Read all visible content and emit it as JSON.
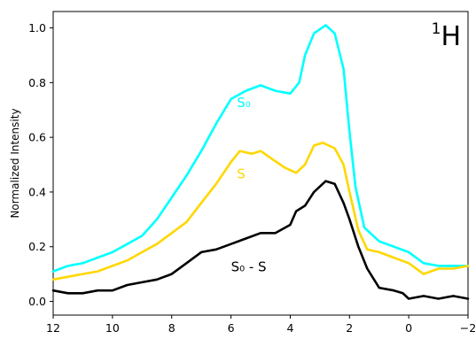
{
  "chart_data": {
    "type": "line",
    "title": "",
    "corner_label": {
      "sup": "1",
      "main": "H"
    },
    "xlabel": "",
    "ylabel": "Normalized Intensity",
    "xlim": [
      12,
      -2
    ],
    "ylim": [
      -0.05,
      1.06
    ],
    "x_reversed": true,
    "xticks": [
      12,
      10,
      8,
      6,
      4,
      2,
      0,
      -2
    ],
    "xtick_labels": [
      "12",
      "10",
      "8",
      "6",
      "4",
      "2",
      "0",
      "−2"
    ],
    "yticks": [
      0.0,
      0.2,
      0.4,
      0.6,
      0.8,
      1.0
    ],
    "ytick_labels": [
      "0.0",
      "0.2",
      "0.4",
      "0.6",
      "0.8",
      "1.0"
    ],
    "grid": false,
    "legend": "none",
    "series": [
      {
        "name": "S₀",
        "label_at": [
          5.8,
          0.71
        ],
        "color": "#00FFFF",
        "points": [
          [
            12,
            0.11
          ],
          [
            11.5,
            0.13
          ],
          [
            11,
            0.14
          ],
          [
            10.5,
            0.16
          ],
          [
            10,
            0.18
          ],
          [
            9.5,
            0.21
          ],
          [
            9,
            0.24
          ],
          [
            8.5,
            0.3
          ],
          [
            8,
            0.38
          ],
          [
            7.5,
            0.46
          ],
          [
            7,
            0.55
          ],
          [
            6.5,
            0.65
          ],
          [
            6,
            0.74
          ],
          [
            5.5,
            0.77
          ],
          [
            5,
            0.79
          ],
          [
            4.5,
            0.77
          ],
          [
            4,
            0.76
          ],
          [
            3.7,
            0.8
          ],
          [
            3.5,
            0.9
          ],
          [
            3.2,
            0.98
          ],
          [
            2.8,
            1.01
          ],
          [
            2.5,
            0.98
          ],
          [
            2.2,
            0.85
          ],
          [
            2,
            0.62
          ],
          [
            1.8,
            0.42
          ],
          [
            1.5,
            0.27
          ],
          [
            1,
            0.22
          ],
          [
            0.5,
            0.2
          ],
          [
            0,
            0.18
          ],
          [
            -0.5,
            0.14
          ],
          [
            -1,
            0.13
          ],
          [
            -1.5,
            0.13
          ],
          [
            -2,
            0.13
          ]
        ]
      },
      {
        "name": "S",
        "label_at": [
          5.8,
          0.45
        ],
        "color": "#FFD700",
        "points": [
          [
            12,
            0.08
          ],
          [
            11.5,
            0.09
          ],
          [
            11,
            0.1
          ],
          [
            10.5,
            0.11
          ],
          [
            10,
            0.13
          ],
          [
            9.5,
            0.15
          ],
          [
            9,
            0.18
          ],
          [
            8.5,
            0.21
          ],
          [
            8,
            0.25
          ],
          [
            7.5,
            0.29
          ],
          [
            7,
            0.36
          ],
          [
            6.5,
            0.43
          ],
          [
            6,
            0.51
          ],
          [
            5.7,
            0.55
          ],
          [
            5.3,
            0.54
          ],
          [
            5,
            0.55
          ],
          [
            4.6,
            0.52
          ],
          [
            4.2,
            0.49
          ],
          [
            3.8,
            0.47
          ],
          [
            3.5,
            0.5
          ],
          [
            3.2,
            0.57
          ],
          [
            2.9,
            0.58
          ],
          [
            2.5,
            0.56
          ],
          [
            2.2,
            0.5
          ],
          [
            2,
            0.4
          ],
          [
            1.7,
            0.26
          ],
          [
            1.4,
            0.19
          ],
          [
            1,
            0.18
          ],
          [
            0.5,
            0.16
          ],
          [
            0,
            0.14
          ],
          [
            -0.5,
            0.1
          ],
          [
            -1,
            0.12
          ],
          [
            -1.5,
            0.12
          ],
          [
            -2,
            0.13
          ]
        ]
      },
      {
        "name": "S₀ - S",
        "label_at": [
          6.0,
          0.11
        ],
        "color": "#000000",
        "points": [
          [
            12,
            0.04
          ],
          [
            11.5,
            0.03
          ],
          [
            11,
            0.03
          ],
          [
            10.5,
            0.04
          ],
          [
            10,
            0.04
          ],
          [
            9.5,
            0.06
          ],
          [
            9,
            0.07
          ],
          [
            8.5,
            0.08
          ],
          [
            8,
            0.1
          ],
          [
            7.5,
            0.14
          ],
          [
            7,
            0.18
          ],
          [
            6.5,
            0.19
          ],
          [
            6,
            0.21
          ],
          [
            5.5,
            0.23
          ],
          [
            5,
            0.25
          ],
          [
            4.5,
            0.25
          ],
          [
            4,
            0.28
          ],
          [
            3.8,
            0.33
          ],
          [
            3.5,
            0.35
          ],
          [
            3.2,
            0.4
          ],
          [
            2.8,
            0.44
          ],
          [
            2.5,
            0.43
          ],
          [
            2.2,
            0.36
          ],
          [
            2,
            0.3
          ],
          [
            1.7,
            0.2
          ],
          [
            1.4,
            0.12
          ],
          [
            1,
            0.05
          ],
          [
            0.5,
            0.04
          ],
          [
            0.2,
            0.03
          ],
          [
            0,
            0.01
          ],
          [
            -0.5,
            0.02
          ],
          [
            -1,
            0.01
          ],
          [
            -1.5,
            0.02
          ],
          [
            -2,
            0.01
          ]
        ]
      }
    ]
  }
}
